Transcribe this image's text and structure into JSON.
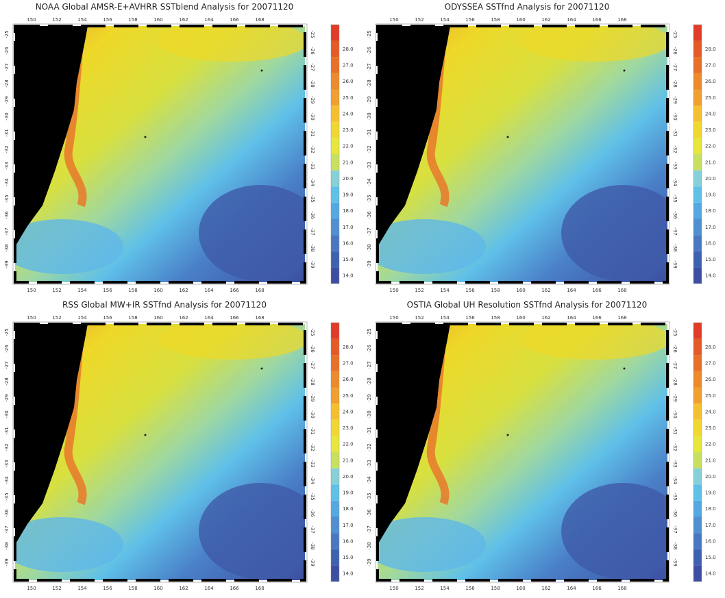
{
  "panels": [
    {
      "title": "NOAA Global AMSR-E+AVHRR SSTblend Analysis for 20071120"
    },
    {
      "title": "ODYSSEA SSTfnd Analysis for 20071120"
    },
    {
      "title": "RSS Global MW+IR SSTfnd Analysis for 20071120"
    },
    {
      "title": "OSTIA Global UH Resolution SSTfnd Analysis for 20071120"
    }
  ],
  "x_ticks": [
    "150",
    "152",
    "154",
    "156",
    "158",
    "160",
    "162",
    "164",
    "166",
    "168"
  ],
  "y_ticks": [
    "-25",
    "-26",
    "-27",
    "-28",
    "-29",
    "-30",
    "-31",
    "-32",
    "-33",
    "-34",
    "-35",
    "-36",
    "-37",
    "-38",
    "-39"
  ],
  "colorbar": {
    "labels": [
      "14.0",
      "15.0",
      "16.0",
      "17.0",
      "18.0",
      "19.0",
      "20.0",
      "21.0",
      "22.0",
      "23.0",
      "24.0",
      "25.0",
      "26.0",
      "27.0",
      "28.0"
    ],
    "colors": [
      "#3c4fa0",
      "#3f62b0",
      "#4a78c0",
      "#5090d0",
      "#55a8e0",
      "#5fc0e8",
      "#86d0d8",
      "#c8e060",
      "#e6e63c",
      "#f0d830",
      "#f5c030",
      "#f0a030",
      "#ec8a2c",
      "#e87028",
      "#e45a28",
      "#e03c28"
    ]
  }
}
